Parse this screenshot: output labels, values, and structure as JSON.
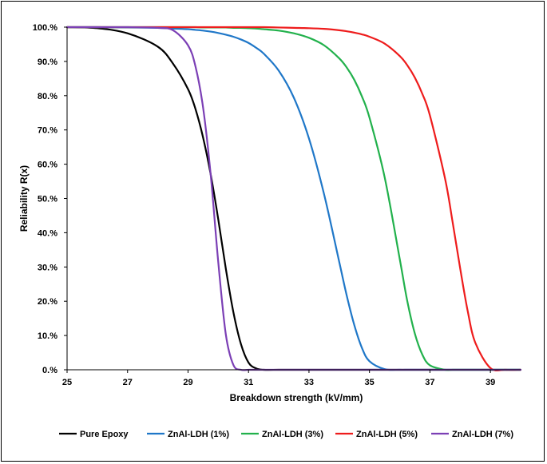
{
  "chart_data": {
    "type": "line",
    "title": "",
    "xlabel": "Breakdown strength (kV/mm)",
    "ylabel": "Reliability R(x)",
    "xlim": [
      25,
      40
    ],
    "ylim": [
      0,
      100
    ],
    "x_ticks": [
      25,
      27,
      29,
      31,
      33,
      35,
      37,
      39
    ],
    "y_ticks": [
      0,
      10,
      20,
      30,
      40,
      50,
      60,
      70,
      80,
      90,
      100
    ],
    "y_tick_labels": [
      "0.%",
      "10.%",
      "20.%",
      "30.%",
      "40.%",
      "50.%",
      "60.%",
      "70.%",
      "80.%",
      "90.%",
      "100.%"
    ],
    "grid": false,
    "legend_position": "bottom",
    "x": [
      25,
      26,
      27,
      28,
      28.5,
      29,
      29.25,
      29.5,
      29.75,
      30,
      30.25,
      30.5,
      30.75,
      31,
      31.25,
      31.5,
      32,
      32.5,
      33,
      33.5,
      34,
      34.25,
      34.5,
      34.75,
      35,
      35.5,
      36,
      36.25,
      36.5,
      36.75,
      37,
      37.5,
      37.75,
      38,
      38.25,
      38.5,
      39,
      39.5,
      40
    ],
    "series": [
      {
        "name": "Pure Epoxy",
        "color": "#000000",
        "values": [
          100,
          99.7,
          98.2,
          94.3,
          89.4,
          81.9,
          76.0,
          67.7,
          57.0,
          43.9,
          29.5,
          16.8,
          7.5,
          2.1,
          0.4,
          0,
          0,
          0,
          0,
          0,
          0,
          0,
          0,
          0,
          0,
          0,
          0,
          0,
          0,
          0,
          0,
          0,
          0,
          0,
          0,
          0,
          0,
          0,
          0
        ]
      },
      {
        "name": "ZnAl-LDH (1%)",
        "color": "#1f77c8",
        "values": [
          100,
          100,
          99.9,
          99.8,
          99.6,
          99.4,
          99.2,
          99.0,
          98.7,
          98.3,
          97.8,
          97.2,
          96.4,
          95.4,
          94.0,
          92.3,
          87.3,
          79.4,
          67.5,
          51.2,
          31.5,
          21.6,
          13.0,
          6.4,
          2.5,
          0.2,
          0,
          0,
          0,
          0,
          0,
          0,
          0,
          0,
          0,
          0,
          0,
          0,
          0
        ]
      },
      {
        "name": "ZnAl-LDH (3%)",
        "color": "#22b14c",
        "values": [
          100,
          100,
          100,
          100,
          100,
          100,
          100,
          99.9,
          99.9,
          99.9,
          99.9,
          99.8,
          99.8,
          99.7,
          99.6,
          99.4,
          99.0,
          98.2,
          96.9,
          94.7,
          90.9,
          88.2,
          84.6,
          79.8,
          73.6,
          56.3,
          32.4,
          20.1,
          10.6,
          4.4,
          1.3,
          0,
          0,
          0,
          0,
          0,
          0,
          0,
          0
        ]
      },
      {
        "name": "ZnAl-LDH (5%)",
        "color": "#ee1c1c",
        "values": [
          100,
          100,
          100,
          100,
          100,
          100,
          100,
          100,
          100,
          100,
          100,
          100,
          100,
          100,
          100,
          100,
          99.9,
          99.8,
          99.7,
          99.5,
          99.1,
          98.8,
          98.4,
          97.9,
          97.2,
          95.2,
          91.6,
          88.9,
          85.3,
          80.5,
          74.2,
          55.8,
          43.1,
          29.6,
          17.1,
          7.9,
          0.5,
          0,
          0
        ]
      },
      {
        "name": "ZnAl-LDH (7%)",
        "color": "#7b3fb5",
        "values": [
          100,
          100,
          100,
          99.8,
          99.1,
          94.7,
          88.4,
          76.4,
          56.9,
          31.4,
          10.3,
          1.4,
          0,
          0,
          0,
          0,
          0,
          0,
          0,
          0,
          0,
          0,
          0,
          0,
          0,
          0,
          0,
          0,
          0,
          0,
          0,
          0,
          0,
          0,
          0,
          0,
          0,
          0,
          0
        ]
      }
    ]
  }
}
